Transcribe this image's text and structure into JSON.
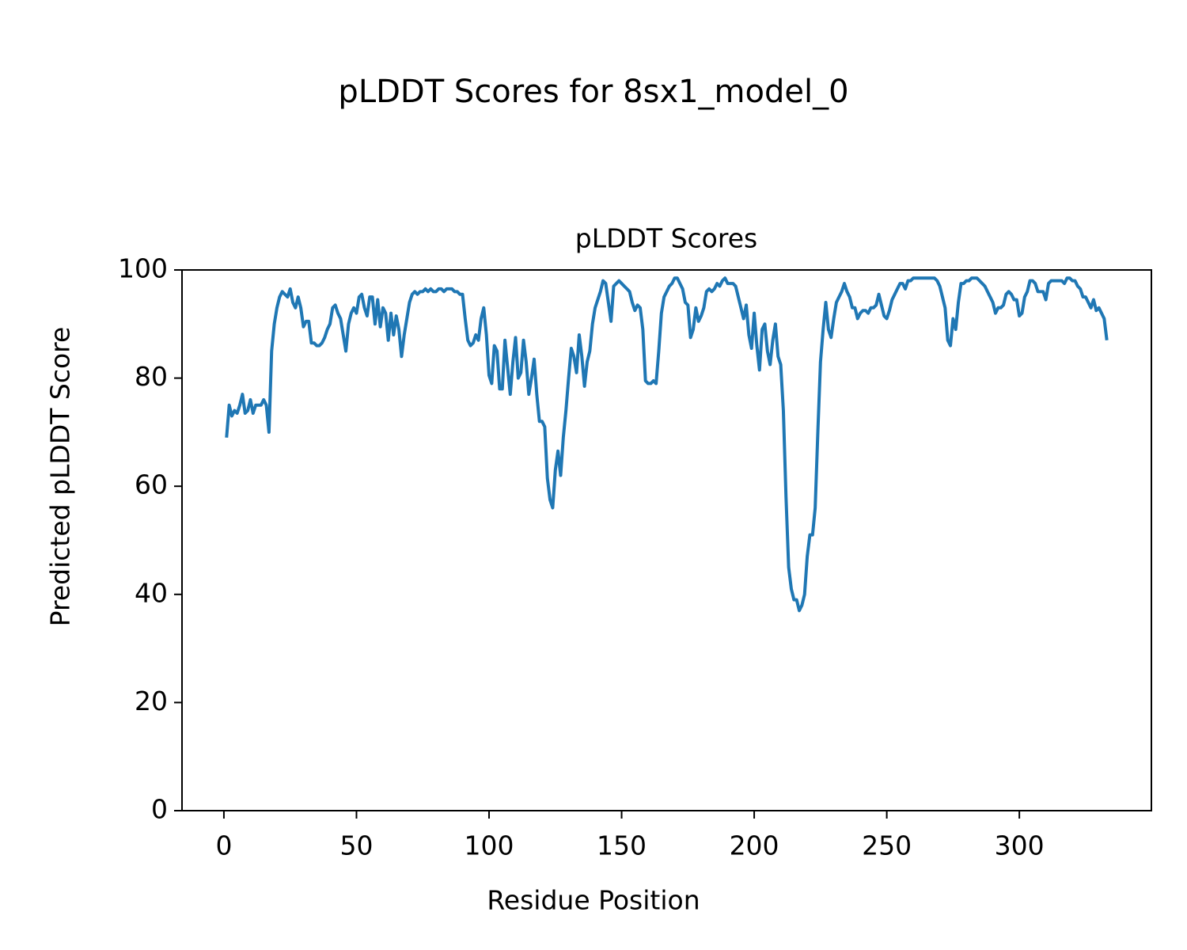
{
  "chart_data": {
    "type": "line",
    "title": "pLDDT Scores for 8sx1_model_0",
    "subtitle": "pLDDT Scores",
    "x_label": "Residue Position",
    "y_label": "Predicted pLDDT Score",
    "xlim": [
      -15.8,
      349.8
    ],
    "ylim": [
      0,
      100
    ],
    "xticks": [
      0,
      50,
      100,
      150,
      200,
      250,
      300
    ],
    "yticks": [
      0,
      20,
      40,
      60,
      80,
      100
    ],
    "grid": false,
    "series": [
      {
        "color": "#1f77b4",
        "x": [
          1,
          2,
          3,
          4,
          5,
          6,
          7,
          8,
          9,
          10,
          11,
          12,
          13,
          14,
          15,
          16,
          17,
          18,
          19,
          20,
          21,
          22,
          23,
          24,
          25,
          26,
          27,
          28,
          29,
          30,
          31,
          32,
          33,
          34,
          35,
          36,
          37,
          38,
          39,
          40,
          41,
          42,
          43,
          44,
          45,
          46,
          47,
          48,
          49,
          50,
          51,
          52,
          53,
          54,
          55,
          56,
          57,
          58,
          59,
          60,
          61,
          62,
          63,
          64,
          65,
          66,
          67,
          68,
          69,
          70,
          71,
          72,
          73,
          74,
          75,
          76,
          77,
          78,
          79,
          80,
          81,
          82,
          83,
          84,
          85,
          86,
          87,
          88,
          89,
          90,
          91,
          92,
          93,
          94,
          95,
          96,
          97,
          98,
          99,
          100,
          101,
          102,
          103,
          104,
          105,
          106,
          107,
          108,
          109,
          110,
          111,
          112,
          113,
          114,
          115,
          116,
          117,
          118,
          119,
          120,
          121,
          122,
          123,
          124,
          125,
          126,
          127,
          128,
          129,
          130,
          131,
          132,
          133,
          134,
          135,
          136,
          137,
          138,
          139,
          140,
          141,
          142,
          143,
          144,
          145,
          146,
          147,
          148,
          149,
          150,
          151,
          152,
          153,
          154,
          155,
          156,
          157,
          158,
          159,
          160,
          161,
          162,
          163,
          164,
          165,
          166,
          167,
          168,
          169,
          170,
          171,
          172,
          173,
          174,
          175,
          176,
          177,
          178,
          179,
          180,
          181,
          182,
          183,
          184,
          185,
          186,
          187,
          188,
          189,
          190,
          191,
          192,
          193,
          194,
          195,
          196,
          197,
          198,
          199,
          200,
          201,
          202,
          203,
          204,
          205,
          206,
          207,
          208,
          209,
          210,
          211,
          212,
          213,
          214,
          215,
          216,
          217,
          218,
          219,
          220,
          221,
          222,
          223,
          224,
          225,
          226,
          227,
          228,
          229,
          230,
          231,
          232,
          233,
          234,
          235,
          236,
          237,
          238,
          239,
          240,
          241,
          242,
          243,
          244,
          245,
          246,
          247,
          248,
          249,
          250,
          251,
          252,
          253,
          254,
          255,
          256,
          257,
          258,
          259,
          260,
          261,
          262,
          263,
          264,
          265,
          266,
          267,
          268,
          269,
          270,
          271,
          272,
          273,
          274,
          275,
          276,
          277,
          278,
          279,
          280,
          281,
          282,
          283,
          284,
          285,
          286,
          287,
          288,
          289,
          290,
          291,
          292,
          293,
          294,
          295,
          296,
          297,
          298,
          299,
          300,
          301,
          302,
          303,
          304,
          305,
          306,
          307,
          308,
          309,
          310,
          311,
          312,
          313,
          314,
          315,
          316,
          317,
          318,
          319,
          320,
          321,
          322,
          323,
          324,
          325,
          326,
          327,
          328,
          329,
          330,
          331,
          332,
          333
        ],
        "values": [
          69,
          75,
          73,
          74,
          73.5,
          75,
          77,
          73.5,
          74,
          76,
          73.5,
          75,
          75,
          75,
          76,
          75,
          70,
          85,
          90,
          93,
          95,
          96,
          95.5,
          95,
          96.5,
          94,
          93,
          95,
          93,
          89.5,
          90.5,
          90.5,
          86.5,
          86.5,
          86,
          86,
          86.5,
          87.5,
          89,
          90,
          93,
          93.5,
          92,
          91,
          88,
          85,
          90,
          92,
          93,
          92,
          95,
          95.5,
          93,
          91.5,
          95,
          95,
          90,
          94.5,
          89.5,
          93,
          92,
          87,
          92,
          88,
          91.5,
          89,
          84,
          88,
          91,
          94,
          95.5,
          96,
          95.5,
          96,
          96,
          96.5,
          96,
          96.5,
          96,
          96,
          96.5,
          96.5,
          96,
          96.5,
          96.5,
          96.5,
          96,
          96,
          95.5,
          95.5,
          91,
          87,
          86,
          86.5,
          88,
          87,
          91,
          93,
          88,
          80.5,
          79,
          86,
          85,
          78,
          78,
          87,
          82,
          77,
          83,
          87.5,
          80,
          81,
          87,
          83,
          77,
          80,
          83.5,
          77,
          72,
          72,
          71,
          61.5,
          57.5,
          56,
          63,
          66.5,
          62,
          69,
          74,
          80,
          85.5,
          84,
          81,
          88,
          84,
          78.5,
          83,
          85,
          90,
          93,
          94.5,
          96,
          98,
          97.5,
          94,
          90.5,
          97,
          97.5,
          98,
          97.5,
          97,
          96.5,
          96,
          94,
          92.5,
          93.5,
          93,
          89,
          79.5,
          79,
          79,
          79.5,
          79,
          85,
          92,
          95,
          96,
          97,
          97.5,
          98.5,
          98.5,
          97.5,
          96.5,
          94,
          93.5,
          87.5,
          89,
          93,
          90.5,
          91.5,
          93,
          96,
          96.5,
          96,
          96.5,
          97.5,
          97,
          98,
          98.5,
          97.5,
          97.5,
          97.5,
          97,
          95,
          93,
          91,
          93.5,
          88,
          85.5,
          92,
          86,
          81.5,
          89,
          90,
          85,
          82.5,
          87,
          90,
          84,
          82.5,
          74,
          58,
          45,
          41,
          39,
          39,
          37,
          38,
          40,
          47,
          51,
          51,
          56,
          70,
          83,
          89,
          94,
          89,
          87.5,
          91,
          94,
          95,
          96,
          97.5,
          96,
          95,
          93,
          93,
          91,
          92,
          92.5,
          92.5,
          92,
          93,
          93,
          93.5,
          95.5,
          93.5,
          91.5,
          91,
          92.5,
          94.5,
          95.5,
          96.5,
          97.5,
          97.5,
          96.5,
          98,
          98,
          98.5,
          98.5,
          98.5,
          98.5,
          98.5,
          98.5,
          98.5,
          98.5,
          98.5,
          98,
          97,
          95,
          93,
          87,
          86,
          91,
          89,
          94,
          97.5,
          97.5,
          98,
          98,
          98.5,
          98.5,
          98.5,
          98,
          97.5,
          97,
          96,
          95,
          94,
          92,
          93,
          93,
          93.5,
          95.5,
          96,
          95.5,
          94.5,
          94.5,
          91.5,
          92,
          95,
          96,
          98,
          98,
          97.5,
          96,
          96,
          96,
          94.5,
          97.5,
          98,
          98,
          98,
          98,
          98,
          97.5,
          98.5,
          98.5,
          98,
          98,
          97,
          96.5,
          95,
          95,
          94,
          93,
          94.5,
          92.5,
          93,
          92,
          91,
          87
        ]
      }
    ]
  }
}
